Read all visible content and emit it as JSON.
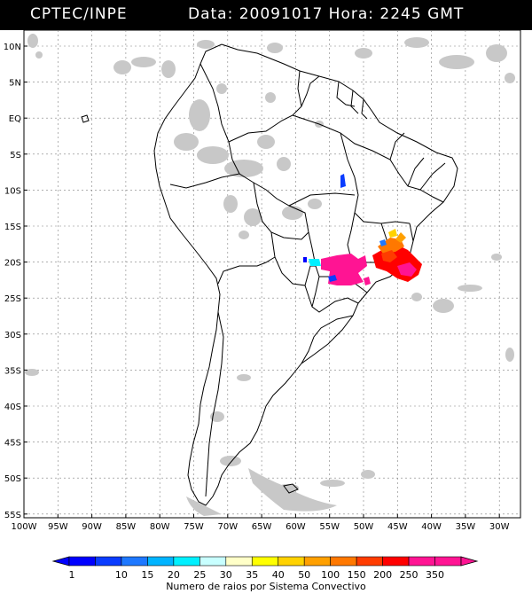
{
  "header": {
    "source": "CPTEC/INPE",
    "date_label": "Data:",
    "date_value": "20091017",
    "hour_label": "Hora:",
    "hour_value": "2245 GMT"
  },
  "map": {
    "lon_ticks": [
      "100W",
      "95W",
      "90W",
      "85W",
      "80W",
      "75W",
      "70W",
      "65W",
      "60W",
      "55W",
      "50W",
      "45W",
      "40W",
      "35W",
      "30W"
    ],
    "lat_ticks": [
      "10N",
      "5N",
      "EQ",
      "5S",
      "10S",
      "15S",
      "20S",
      "25S",
      "30S",
      "35S",
      "40S",
      "45S",
      "50S",
      "55S"
    ]
  },
  "legend": {
    "values": [
      "1",
      "10",
      "15",
      "20",
      "25",
      "30",
      "35",
      "40",
      "50",
      "100",
      "150",
      "200",
      "250",
      "350"
    ],
    "colors": [
      "#0000ff",
      "#0a3cff",
      "#1e78ff",
      "#00b4ff",
      "#00f0ff",
      "#c8ffff",
      "#ffffc8",
      "#ffff00",
      "#ffd200",
      "#ffa000",
      "#ff7800",
      "#ff3c00",
      "#ff0000",
      "#ff1493",
      "#ff1493"
    ],
    "title": "Numero de raios por Sistema Convectivo"
  }
}
